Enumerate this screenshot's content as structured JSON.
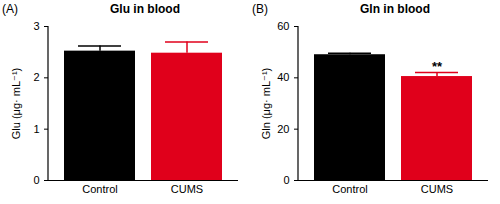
{
  "chart_data": [
    {
      "type": "bar",
      "panel_label": "(A)",
      "title": "Glu in blood",
      "categories": [
        "Control",
        "CUMS"
      ],
      "values": [
        2.52,
        2.48
      ],
      "errors": [
        0.1,
        0.22
      ],
      "colors": [
        "#000000",
        "#e0001b"
      ],
      "ylabel": "Glu (μg· mL⁻¹)",
      "ylim": [
        0,
        3
      ],
      "yticks": [
        0,
        1,
        2,
        3
      ]
    },
    {
      "type": "bar",
      "panel_label": "(B)",
      "title": "Gln in blood",
      "categories": [
        "Control",
        "CUMS"
      ],
      "values": [
        49,
        40.5
      ],
      "errors": [
        0.6,
        1.6
      ],
      "colors": [
        "#000000",
        "#e0001b"
      ],
      "ylabel": "Gln (μg· mL⁻¹)",
      "ylim": [
        0,
        60
      ],
      "yticks": [
        0,
        20,
        40,
        60
      ],
      "annotations": [
        {
          "category": "CUMS",
          "text": "**"
        }
      ]
    }
  ]
}
